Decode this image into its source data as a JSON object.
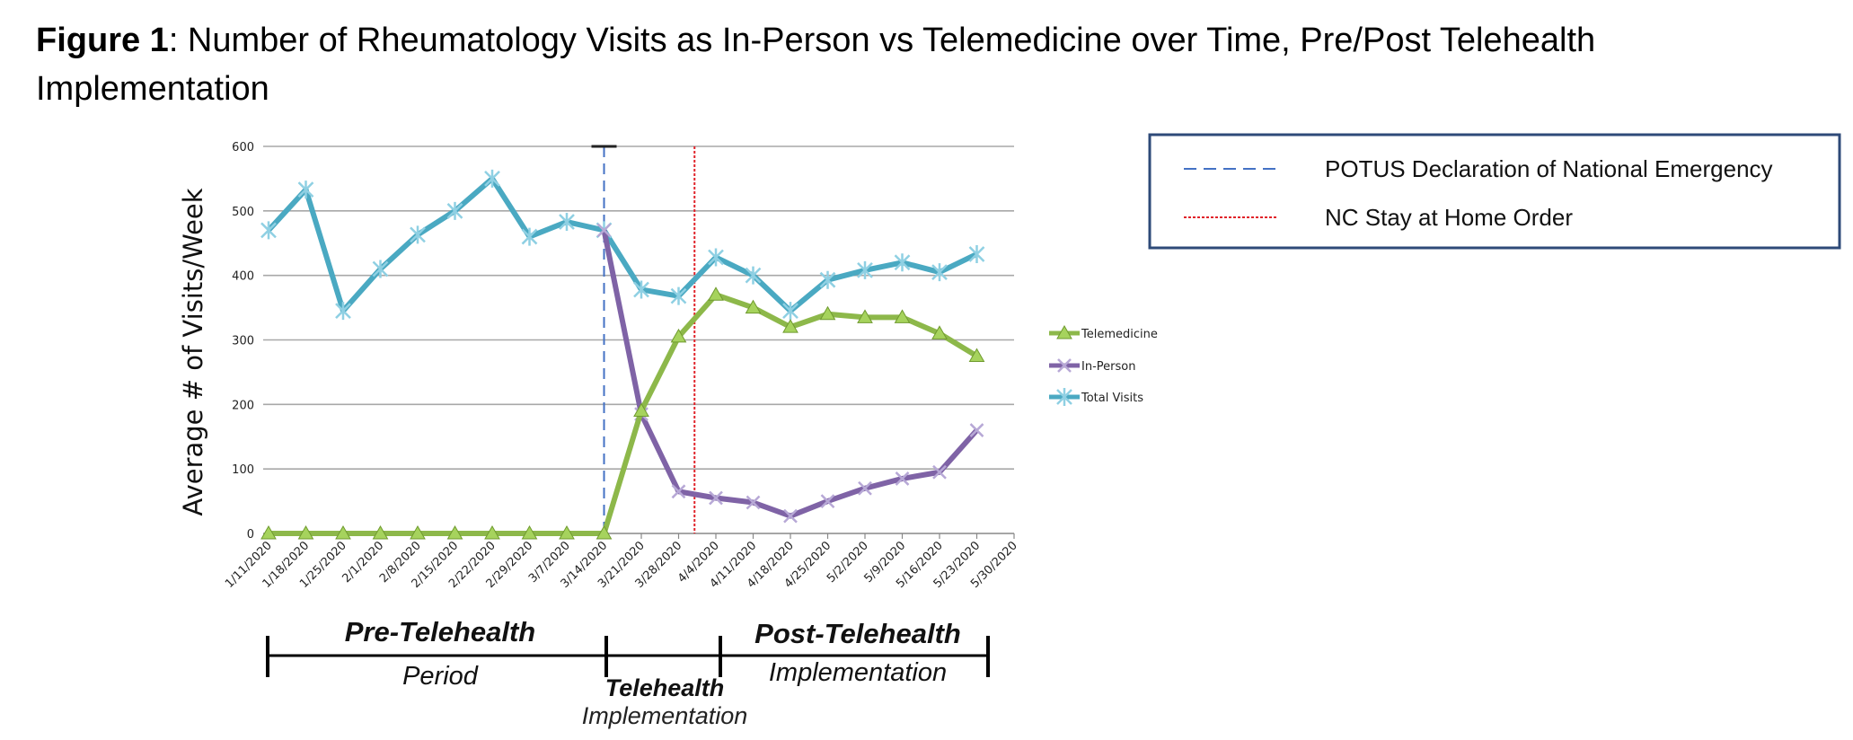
{
  "figure": {
    "label": "Figure 1",
    "caption": ": Number of Rheumatology Visits as In-Person vs Telemedicine over Time, Pre/Post Telehealth Implementation"
  },
  "chart_data": {
    "type": "line",
    "title": "",
    "xlabel": "",
    "ylabel": "Average # of Visits/Week",
    "ylim": [
      0,
      600
    ],
    "yticks": [
      0,
      100,
      200,
      300,
      400,
      500,
      600
    ],
    "grid": true,
    "legend_position": "right",
    "categories": [
      "1/11/2020",
      "1/18/2020",
      "1/25/2020",
      "2/1/2020",
      "2/8/2020",
      "2/15/2020",
      "2/22/2020",
      "2/29/2020",
      "3/7/2020",
      "3/14/2020",
      "3/21/2020",
      "3/28/2020",
      "4/4/2020",
      "4/11/2020",
      "4/18/2020",
      "4/25/2020",
      "5/2/2020",
      "5/9/2020",
      "5/16/2020",
      "5/23/2020",
      "5/30/2020"
    ],
    "series": [
      {
        "name": "Telemedicine",
        "color": "#8db84a",
        "marker": "triangle",
        "values": [
          0,
          0,
          0,
          0,
          0,
          0,
          0,
          0,
          0,
          0,
          190,
          305,
          370,
          350,
          320,
          340,
          335,
          335,
          310,
          275,
          null
        ]
      },
      {
        "name": "In-Person",
        "color": "#7f63a6",
        "marker": "x",
        "values": [
          null,
          null,
          null,
          null,
          null,
          null,
          null,
          null,
          null,
          470,
          185,
          65,
          55,
          48,
          27,
          50,
          70,
          85,
          95,
          160,
          null
        ]
      },
      {
        "name": "Total Visits",
        "color": "#4aa9c2",
        "marker": "star",
        "values": [
          470,
          533,
          345,
          410,
          463,
          500,
          550,
          460,
          483,
          470,
          378,
          368,
          428,
          400,
          345,
          393,
          408,
          420,
          405,
          433,
          null
        ]
      }
    ],
    "reference_lines": [
      {
        "label": "POTUS Declaration of National Emergency",
        "at": "3/14/2020",
        "color": "#4472c4",
        "style": "dashed"
      },
      {
        "label": "NC Stay at Home Order",
        "at_between": [
          "3/28/2020",
          "4/4/2020"
        ],
        "color": "#e0232a",
        "style": "dotted"
      }
    ]
  },
  "phases": {
    "pre_bold": "Pre-Telehealth",
    "pre_sub": "Period",
    "mid_bold": "Telehealth",
    "mid_sub": "Implementation",
    "post_bold": "Post-Telehealth",
    "post_sub": "Implementation"
  }
}
